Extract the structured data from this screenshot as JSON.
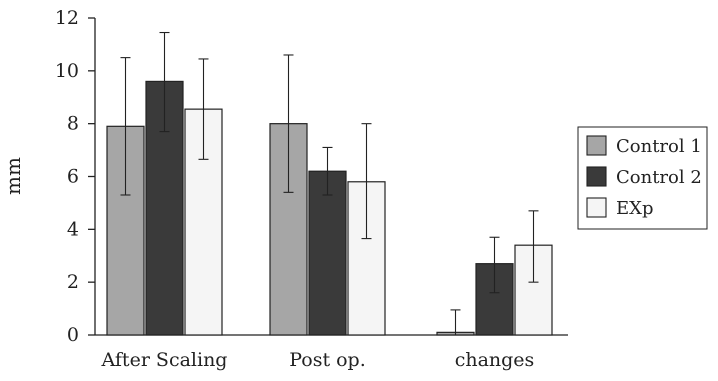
{
  "chart_data": {
    "type": "bar",
    "categories": [
      "After Scaling",
      "Post op.",
      "changes"
    ],
    "ylabel": "mm",
    "ylim": [
      0,
      12
    ],
    "yticks": [
      0,
      2,
      4,
      6,
      8,
      10,
      12
    ],
    "grid": false,
    "legend_position": "right",
    "series": [
      {
        "name": "Control 1",
        "color": "#a6a6a6",
        "values": [
          7.9,
          8.0,
          0.1
        ],
        "err_low": [
          5.3,
          5.4,
          0.0
        ],
        "err_high": [
          10.5,
          10.6,
          0.95
        ]
      },
      {
        "name": "Control 2",
        "color": "#3a3a3a",
        "values": [
          9.6,
          6.2,
          2.7
        ],
        "err_low": [
          7.7,
          5.3,
          1.6
        ],
        "err_high": [
          11.45,
          7.1,
          3.7
        ]
      },
      {
        "name": "EXp",
        "color": "#f5f5f5",
        "values": [
          8.55,
          5.8,
          3.4
        ],
        "err_low": [
          6.65,
          3.65,
          2.0
        ],
        "err_high": [
          10.45,
          8.0,
          4.7
        ]
      }
    ]
  }
}
